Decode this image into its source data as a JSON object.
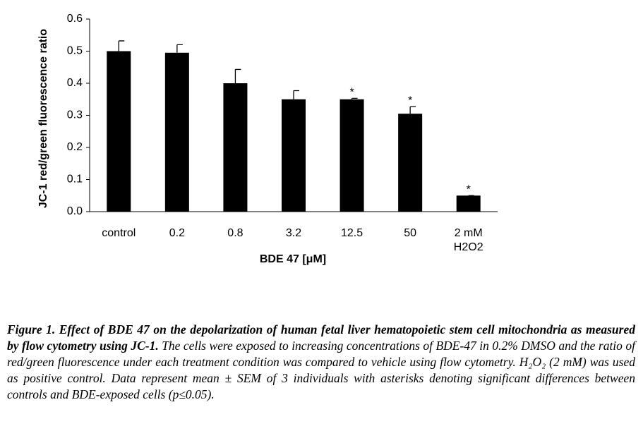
{
  "chart_data": {
    "type": "bar",
    "categories": [
      "control",
      "0.2",
      "0.8",
      "3.2",
      "12.5",
      "50",
      "2 mM H2O2"
    ],
    "values": [
      0.5,
      0.495,
      0.4,
      0.35,
      0.35,
      0.305,
      0.05
    ],
    "errors": [
      0.032,
      0.025,
      0.043,
      0.027,
      0.003,
      0.022,
      0
    ],
    "significant": [
      false,
      false,
      false,
      false,
      true,
      true,
      true
    ],
    "significance_mark": "*",
    "color": "#000000",
    "ylim": [
      0,
      0.6
    ],
    "yticks": [
      {
        "value": 0,
        "label": "0.0"
      },
      0.1,
      0.2,
      0.3,
      0.4,
      0.5,
      0.6
    ],
    "y_label": "JC-1 red/green fluorescence ratio",
    "x_label": "BDE 47 [μM]",
    "grid": false
  },
  "caption": {
    "title": "Figure 1.  Effect of BDE 47 on the depolarization of human fetal liver hematopoietic stem cell mitochondria as measured by flow cytometry using JC-1.",
    "body": "The cells were exposed to increasing concentrations of BDE-47 in 0.2% DMSO and the ratio of red/green fluorescence under each treatment condition was compared to vehicle using flow cytometry. H₂O₂ (2 mM) was used as positive control. Data represent mean ± SEM of 3 individuals with asterisks denoting significant differences between controls and BDE-exposed cells (p≤0.05)."
  }
}
